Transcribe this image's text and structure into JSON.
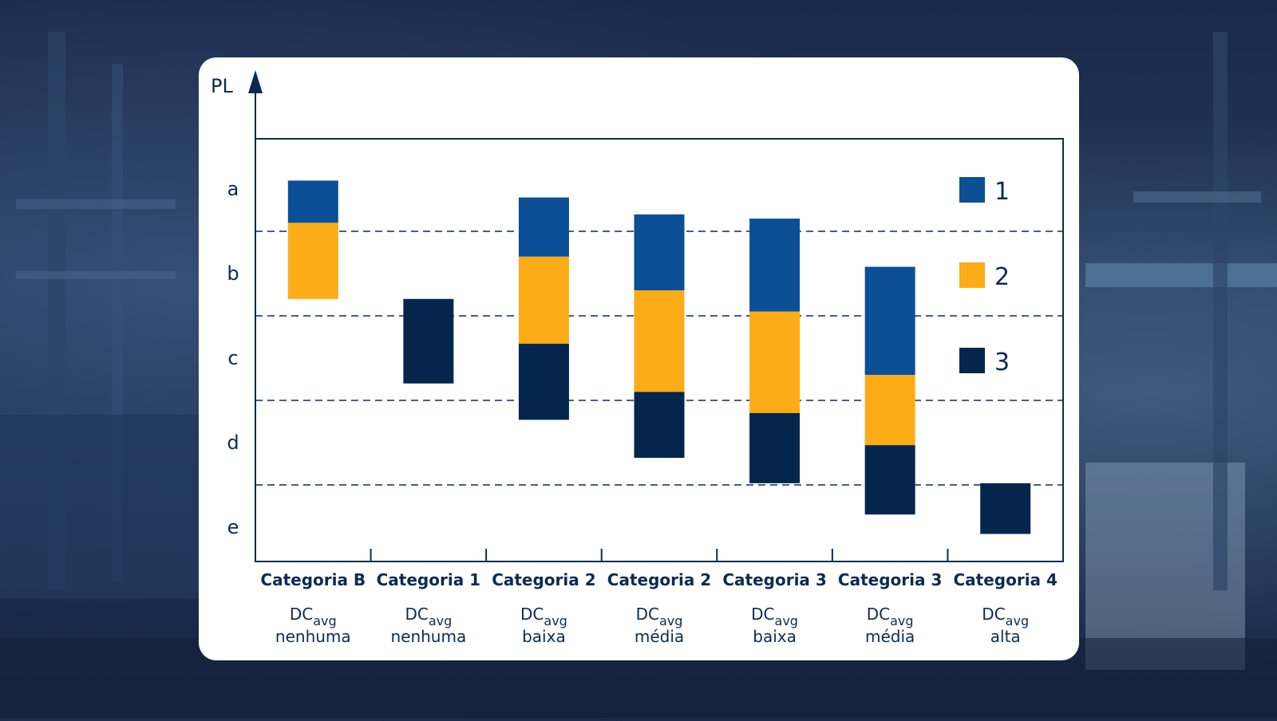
{
  "chart_data": {
    "type": "bar",
    "subtype": "floating-stacked",
    "y_axis_label": "PL",
    "y_levels": [
      "a",
      "b",
      "c",
      "d",
      "e"
    ],
    "y_range_note": "a (top) to e (bottom), continuous scale 0-5",
    "colors": {
      "1": "#0b4f96",
      "2": "#fbac17",
      "3": "#04264d"
    },
    "legend": [
      {
        "key": "1",
        "label": "1"
      },
      {
        "key": "2",
        "label": "2"
      },
      {
        "key": "3",
        "label": "3"
      }
    ],
    "categories": [
      {
        "name": "Categoria B",
        "dc_prefix": "DC",
        "dc_sub": "avg",
        "dc_level": "nenhuma",
        "segments": [
          {
            "series": "1",
            "from": 0.4,
            "to": 0.9
          },
          {
            "series": "2",
            "from": 0.9,
            "to": 1.8
          }
        ]
      },
      {
        "name": "Categoria 1",
        "dc_prefix": "DC",
        "dc_sub": "avg",
        "dc_level": "nenhuma",
        "segments": [
          {
            "series": "3",
            "from": 1.8,
            "to": 2.8
          }
        ]
      },
      {
        "name": "Categoria 2",
        "dc_prefix": "DC",
        "dc_sub": "avg",
        "dc_level": "baixa",
        "segments": [
          {
            "series": "1",
            "from": 0.6,
            "to": 1.3
          },
          {
            "series": "2",
            "from": 1.3,
            "to": 2.33
          },
          {
            "series": "3",
            "from": 2.33,
            "to": 3.23
          }
        ]
      },
      {
        "name": "Categoria 2",
        "dc_prefix": "DC",
        "dc_sub": "avg",
        "dc_level": "média",
        "segments": [
          {
            "series": "1",
            "from": 0.8,
            "to": 1.7
          },
          {
            "series": "2",
            "from": 1.7,
            "to": 2.9
          },
          {
            "series": "3",
            "from": 2.9,
            "to": 3.68
          }
        ]
      },
      {
        "name": "Categoria 3",
        "dc_prefix": "DC",
        "dc_sub": "avg",
        "dc_level": "baixa",
        "segments": [
          {
            "series": "1",
            "from": 0.85,
            "to": 1.95
          },
          {
            "series": "2",
            "from": 1.95,
            "to": 3.15
          },
          {
            "series": "3",
            "from": 3.15,
            "to": 3.98
          }
        ]
      },
      {
        "name": "Categoria 3",
        "dc_prefix": "DC",
        "dc_sub": "avg",
        "dc_level": "média",
        "segments": [
          {
            "series": "1",
            "from": 1.42,
            "to": 2.7
          },
          {
            "series": "2",
            "from": 2.7,
            "to": 3.53
          },
          {
            "series": "3",
            "from": 3.53,
            "to": 4.35
          }
        ]
      },
      {
        "name": "Categoria 4",
        "dc_prefix": "DC",
        "dc_sub": "avg",
        "dc_level": "alta",
        "segments": [
          {
            "series": "3",
            "from": 3.98,
            "to": 4.58
          }
        ]
      }
    ]
  }
}
